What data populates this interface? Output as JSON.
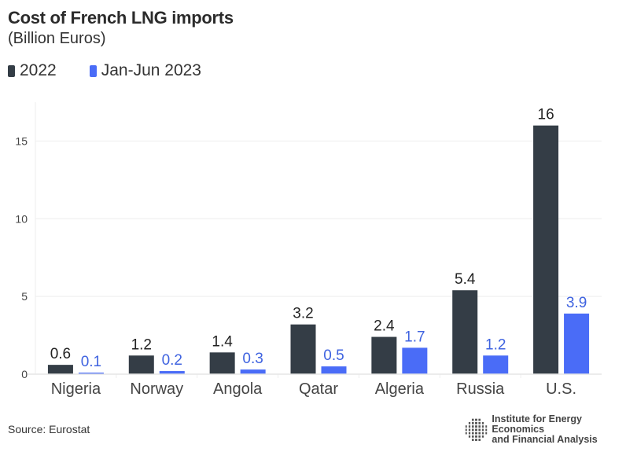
{
  "chart_data": {
    "type": "bar",
    "title": "Cost of French LNG imports",
    "subtitle": "(Billion Euros)",
    "xlabel": "",
    "ylabel": "",
    "ylim": [
      0,
      17.5
    ],
    "yticks": [
      0,
      5,
      10,
      15
    ],
    "grid": true,
    "legend_position": "top-left",
    "categories": [
      "Nigeria",
      "Norway",
      "Angola",
      "Qatar",
      "Algeria",
      "Russia",
      "U.S."
    ],
    "series": [
      {
        "name": "2022",
        "color": "#343d46",
        "label_color": "#222222",
        "values": [
          0.6,
          1.2,
          1.4,
          3.2,
          2.4,
          5.4,
          16
        ]
      },
      {
        "name": "Jan-Jun 2023",
        "color": "#4a6cf7",
        "label_color": "#3f63e0",
        "values": [
          0.1,
          0.2,
          0.3,
          0.5,
          1.7,
          1.2,
          3.9
        ]
      }
    ]
  },
  "footer": {
    "source": "Source: Eurostat",
    "logo_line1": "Institute for Energy Economics",
    "logo_line2": "and Financial Analysis"
  }
}
